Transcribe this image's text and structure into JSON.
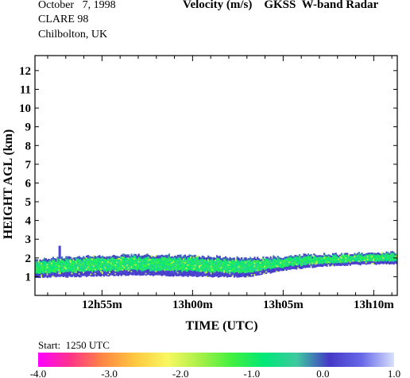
{
  "header": {
    "date": "October   7, 1998",
    "campaign": "CLARE 98",
    "location": "Chilbolton, UK",
    "title": "Velocity (m/s)    GKSS  W-band Radar"
  },
  "footer": {
    "start": "Start:  1250 UTC"
  },
  "colorbar": {
    "min": -4.0,
    "max": 1.0,
    "tick_labels": [
      "-4.0",
      "-3.0",
      "-2.0",
      "-1.0",
      "0.0",
      "1.0"
    ],
    "stops": [
      "#ff00ff",
      "#ff3388",
      "#ff8844",
      "#ffc840",
      "#f8f860",
      "#a8f048",
      "#40f040",
      "#00e878",
      "#3fc8a0",
      "#4438c8",
      "#6868e8",
      "#d8e0fc"
    ]
  },
  "chart_data": {
    "type": "heatmap",
    "title": "Velocity (m/s)    GKSS  W-band Radar",
    "xlabel": "TIME (UTC)",
    "ylabel": "HEIGHT AGL (km)",
    "x_unit": "minutes after 12h50m UTC",
    "xlim": [
      1.3,
      21.3
    ],
    "ylim": [
      0.0,
      12.8
    ],
    "x_ticks": [
      5,
      10,
      15,
      20
    ],
    "x_tick_labels": [
      "12h55m",
      "13h00m",
      "13h05m",
      "13h10m"
    ],
    "y_ticks": [
      1,
      2,
      3,
      4,
      5,
      6,
      7,
      8,
      9,
      10,
      11,
      12
    ],
    "y_tick_labels": [
      "1",
      "2",
      "3",
      "4",
      "5",
      "6",
      "7",
      "8",
      "9",
      "10",
      "11",
      "12"
    ],
    "value_range": [
      -4.0,
      1.0
    ],
    "echo_layer": {
      "time": [
        1.3,
        3.0,
        5.0,
        7.0,
        9.0,
        11.0,
        13.0,
        15.0,
        17.0,
        19.0,
        21.3
      ],
      "top_km": [
        1.9,
        2.0,
        2.1,
        2.15,
        2.1,
        2.05,
        1.95,
        2.05,
        2.15,
        2.2,
        2.25
      ],
      "base_km": [
        0.95,
        1.0,
        1.05,
        1.1,
        1.05,
        1.0,
        1.0,
        1.35,
        1.55,
        1.65,
        1.7
      ]
    },
    "spike": {
      "time": 2.6,
      "top_km": 2.65
    }
  }
}
